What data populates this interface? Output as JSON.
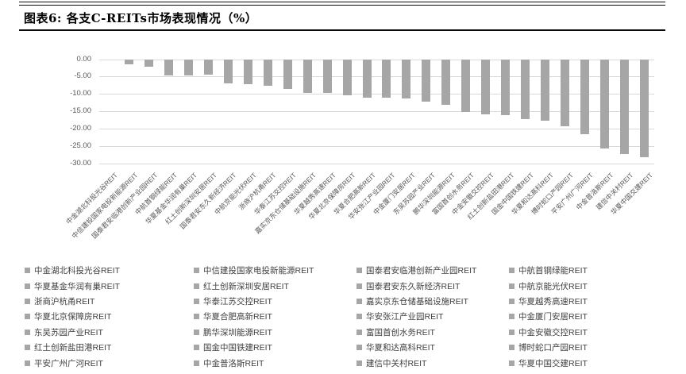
{
  "header": {
    "title": "图表6: 各支C-REITs市场表现情况（%）"
  },
  "chart_data": {
    "type": "bar",
    "title": "各支C-REITs市场表现情况（%）",
    "xlabel": "",
    "ylabel": "",
    "ylim": [
      -30,
      0
    ],
    "grid": true,
    "legend_position": "bottom-4col-grid",
    "bar_color": "#a6a6a6",
    "gridline_color": "#d9d9d9",
    "axis_text_color": "#595959",
    "yticks": [
      "0.00",
      "-5.00",
      "-10.00",
      "-15.00",
      "-20.00",
      "-25.00",
      "-30.00"
    ],
    "ytick_values": [
      0,
      -5,
      -10,
      -15,
      -20,
      -25,
      -30
    ],
    "categories": [
      "中金湖北科投光谷REIT",
      "中信建投国家电投新能源REIT",
      "国泰君安临港创新产业园REIT",
      "中航首钢绿能REIT",
      "华夏基金华润有巢REIT",
      "红土创新深圳安居REIT",
      "国泰君安东久新经济REIT",
      "中航京能光伏REIT",
      "浙商沪杭甬REIT",
      "华泰江苏交控REIT",
      "嘉实京东仓储基础设施REIT",
      "华夏越秀高速REIT",
      "华夏北京保障房REIT",
      "华夏合肥高新REIT",
      "华安张江产业园REIT",
      "中金厦门安居REIT",
      "东吴苏园产业REIT",
      "鹏华深圳能源REIT",
      "富国首创水务REIT",
      "中金安徽交控REIT",
      "红土创新盐田港REIT",
      "国金中国铁建REIT",
      "华夏和达高科REIT",
      "博时蛇口产园REIT",
      "平安广州广河REIT",
      "中金普洛斯REIT",
      "建信中关村REIT",
      "华夏中国交建REIT"
    ],
    "values": [
      0.0,
      -1.6,
      -2.2,
      -4.8,
      -4.8,
      -4.5,
      -6.9,
      -7.2,
      -7.7,
      -8.7,
      -9.8,
      -9.7,
      -10.5,
      -11.0,
      -11.2,
      -11.4,
      -12.3,
      -13.1,
      -15.2,
      -15.9,
      -16.1,
      -17.4,
      -17.8,
      -19.3,
      -21.7,
      -25.7,
      -27.4,
      -28.3
    ]
  }
}
